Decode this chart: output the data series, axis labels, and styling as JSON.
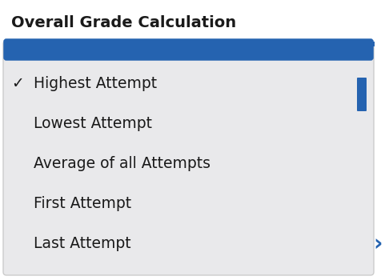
{
  "title": "Overall Grade Calculation",
  "title_fontsize": 14,
  "title_fontweight": "bold",
  "title_color": "#1a1a1a",
  "background_color": "#ffffff",
  "dropdown_bg": "#e9e9eb",
  "dropdown_border_color": "#cccccc",
  "blue_color": "#2563b0",
  "checkmark": "✓",
  "options": [
    {
      "label": "Highest Attempt",
      "checked": true
    },
    {
      "label": "Lowest Attempt",
      "checked": false
    },
    {
      "label": "Average of all Attempts",
      "checked": false
    },
    {
      "label": "First Attempt",
      "checked": false
    },
    {
      "label": "Last Attempt",
      "checked": false
    }
  ],
  "option_fontsize": 13.5,
  "option_color": "#1a1a1a",
  "fig_width": 4.86,
  "fig_height": 3.5,
  "dpi": 100
}
